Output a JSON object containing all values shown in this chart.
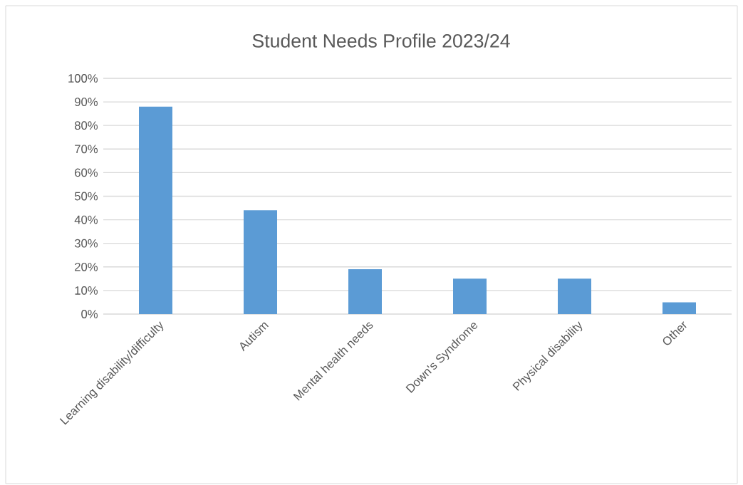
{
  "chart_data": {
    "type": "bar",
    "title": "Student Needs Profile 2023/24",
    "categories": [
      "Learning disability/difficulty",
      "Autism",
      "Mental health needs",
      "Down's Syndrome",
      "Physical disability",
      "Other"
    ],
    "values": [
      88,
      44,
      19,
      15,
      15,
      5
    ],
    "color": "#5b9bd5",
    "ylim": [
      0,
      100
    ],
    "yticks": [
      {
        "value": 0,
        "label": "0%"
      },
      {
        "value": 10,
        "label": "10%"
      },
      {
        "value": 20,
        "label": "20%"
      },
      {
        "value": 30,
        "label": "30%"
      },
      {
        "value": 40,
        "label": "40%"
      },
      {
        "value": 50,
        "label": "50%"
      },
      {
        "value": 60,
        "label": "60%"
      },
      {
        "value": 70,
        "label": "70%"
      },
      {
        "value": 80,
        "label": "80%"
      },
      {
        "value": 90,
        "label": "90%"
      },
      {
        "value": 100,
        "label": "100%"
      }
    ],
    "grid": "y"
  }
}
